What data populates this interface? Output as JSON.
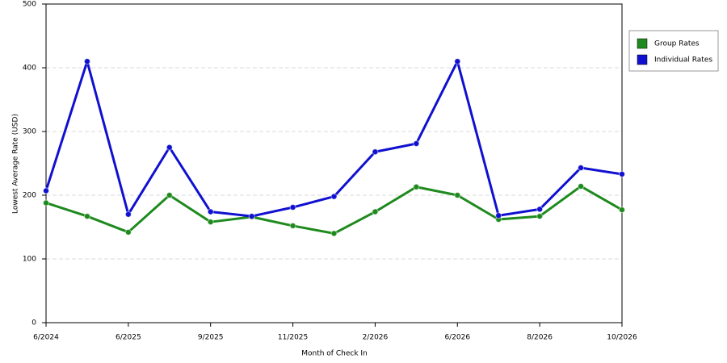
{
  "chart_data": {
    "type": "line",
    "x_label": "Month of Check In",
    "y_label": "Lowest Average Rate (USD)",
    "categories": [
      "6/2024",
      null,
      "6/2025",
      null,
      "9/2025",
      null,
      "11/2025",
      null,
      "2/2026",
      null,
      "6/2026",
      null,
      "8/2026",
      null,
      "10/2026"
    ],
    "series": [
      {
        "name": "Group Rates",
        "color": "#1e8a1e",
        "values": [
          188,
          167,
          142,
          200,
          158,
          166,
          152,
          140,
          174,
          213,
          200,
          162,
          167,
          214,
          177
        ]
      },
      {
        "name": "Individual Rates",
        "color": "#1010d0",
        "values": [
          207,
          410,
          170,
          275,
          174,
          167,
          181,
          198,
          268,
          281,
          410,
          168,
          178,
          243,
          233
        ]
      }
    ],
    "ylim": [
      0,
      500
    ],
    "yticks": [
      0,
      100,
      200,
      300,
      400,
      500
    ],
    "grid": true,
    "legend": "right"
  }
}
